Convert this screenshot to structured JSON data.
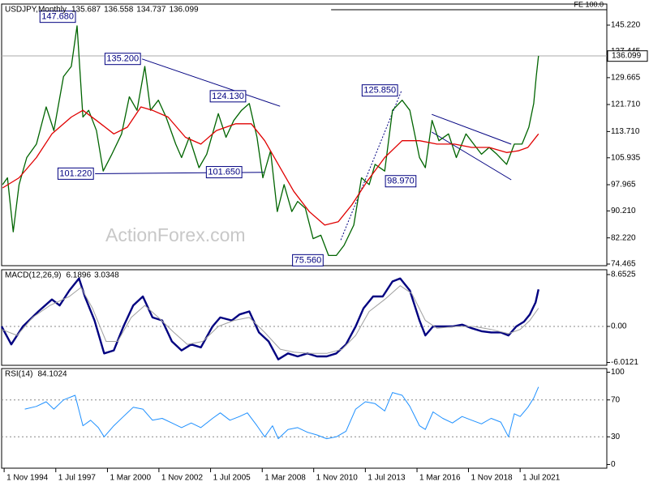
{
  "chart_data": [
    {
      "type": "line",
      "title": "USDJPY,Monthly",
      "ohlc": [
        135.687,
        136.558,
        134.737,
        136.099
      ],
      "xlim": [
        1994.7,
        2025.98
      ],
      "xticks": [
        {
          "value": 1994.83,
          "label": "1 Nov 1994"
        },
        {
          "value": 1997.5,
          "label": "1 Jul 1997"
        },
        {
          "value": 2000.17,
          "label": "1 Mar 2000"
        },
        {
          "value": 2002.83,
          "label": "1 Nov 2002"
        },
        {
          "value": 2005.5,
          "label": "1 Jul 2005"
        },
        {
          "value": 2008.17,
          "label": "1 Mar 2008"
        },
        {
          "value": 2010.83,
          "label": "1 Nov 2010"
        },
        {
          "value": 2013.5,
          "label": "1 Jul 2013"
        },
        {
          "value": 2016.17,
          "label": "1 Mar 2016"
        },
        {
          "value": 2018.83,
          "label": "1 Nov 2018"
        },
        {
          "value": 2021.5,
          "label": "1 Jul 2021"
        }
      ],
      "ylim": [
        73.985,
        151.46
      ],
      "yticks": [
        {
          "value": 145.22,
          "label": "145.220"
        },
        {
          "value": 137.445,
          "label": "137.445"
        },
        {
          "value": 129.665,
          "label": "129.665"
        },
        {
          "value": 121.71,
          "label": "121.710"
        },
        {
          "value": 113.71,
          "label": "113.710"
        },
        {
          "value": 105.935,
          "label": "105.935"
        },
        {
          "value": 97.965,
          "label": "97.965"
        },
        {
          "value": 90.21,
          "label": "90.210"
        },
        {
          "value": 82.22,
          "label": "82.220"
        },
        {
          "value": 74.465,
          "label": "74.465"
        }
      ],
      "series": [
        {
          "color": "#006400",
          "x": [
            1994.75,
            1995.0,
            1995.3,
            1995.6,
            1996.0,
            1996.5,
            1997.0,
            1997.4,
            1997.9,
            1998.3,
            1998.6,
            1998.9,
            1999.2,
            1999.6,
            1999.95,
            2000.4,
            2000.9,
            2001.3,
            2001.7,
            2002.1,
            2002.4,
            2002.8,
            2003.2,
            2003.7,
            2004.0,
            2004.4,
            2004.9,
            2005.3,
            2005.9,
            2006.3,
            2006.7,
            2007.1,
            2007.5,
            2007.9,
            2008.2,
            2008.6,
            2008.95,
            2009.3,
            2009.7,
            2010.0,
            2010.4,
            2010.8,
            2011.2,
            2011.6,
            2012.0,
            2012.4,
            2012.9,
            2013.3,
            2013.7,
            2014.0,
            2014.5,
            2014.9,
            2015.4,
            2015.8,
            2016.3,
            2016.6,
            2016.95,
            2017.3,
            2017.8,
            2018.2,
            2018.7,
            2019.1,
            2019.5,
            2019.9,
            2020.3,
            2020.8,
            2021.2,
            2021.6,
            2021.95,
            2022.2,
            2022.33,
            2022.45
          ],
          "values": [
            98,
            100,
            84,
            98,
            106,
            110,
            121,
            114,
            130,
            133,
            145,
            118,
            120,
            114,
            102,
            107,
            113,
            124,
            120,
            133,
            120,
            123,
            118,
            110,
            106,
            112,
            103,
            107,
            119,
            112,
            117,
            120,
            122,
            112,
            100,
            108,
            90,
            98,
            90,
            93,
            91,
            82,
            83,
            77,
            77,
            80,
            86,
            100,
            98,
            104,
            102,
            120,
            123,
            120,
            106,
            103,
            117,
            111,
            113,
            106,
            113,
            110,
            107,
            109,
            107,
            104,
            110,
            110,
            115,
            122,
            130,
            136.099
          ]
        },
        {
          "color": "#e00000",
          "x": [
            1994.75,
            1995.6,
            1996.5,
            1997.3,
            1998.3,
            1998.9,
            1999.6,
            2000.5,
            2001.2,
            2001.9,
            2002.5,
            2003.3,
            2004.2,
            2005.0,
            2005.8,
            2006.8,
            2007.6,
            2008.3,
            2009.0,
            2009.8,
            2010.6,
            2011.4,
            2012.1,
            2012.8,
            2013.6,
            2014.5,
            2015.4,
            2016.3,
            2017.2,
            2018.1,
            2019.0,
            2019.9,
            2020.8,
            2021.4,
            2021.9,
            2022.45
          ],
          "values": [
            97,
            100,
            106,
            113,
            118,
            120,
            117,
            113,
            115,
            121,
            120,
            118,
            112,
            110,
            114,
            116,
            116,
            111,
            104,
            96,
            90,
            86,
            87,
            92,
            99,
            106,
            111,
            111,
            110,
            110,
            109,
            109,
            107.5,
            108,
            109,
            113
          ]
        }
      ],
      "current_price": 136.099,
      "annotations": [
        {
          "x": 1998.6,
          "value": 147.68,
          "label": "147.680"
        },
        {
          "x": 2001.96,
          "value": 135.2,
          "label": "135.200"
        },
        {
          "x": 2007.4,
          "value": 124.13,
          "label": "124.130"
        },
        {
          "x": 1999.53,
          "value": 101.22,
          "label": "101.220"
        },
        {
          "x": 2007.2,
          "value": 101.65,
          "label": "101.650"
        },
        {
          "x": 2015.25,
          "value": 125.85,
          "label": "125.850"
        },
        {
          "x": 2016.2,
          "value": 98.97,
          "label": "98.970"
        },
        {
          "x": 2011.4,
          "value": 75.56,
          "label": "75.560"
        }
      ],
      "trendlines": [
        {
          "style": "solid",
          "x": [
            2001.96,
            2009.09
          ],
          "y": [
            135.2,
            121.2
          ]
        },
        {
          "style": "solid",
          "x": [
            1999.53,
            2008.25
          ],
          "y": [
            101.22,
            101.65
          ]
        },
        {
          "style": "dotted",
          "x": [
            2012.23,
            2015.37
          ],
          "y": [
            81.6,
            125.85
          ]
        },
        {
          "style": "solid",
          "x": [
            2016.93,
            2021.04
          ],
          "y": [
            118.8,
            109.96
          ]
        },
        {
          "style": "solid",
          "x": [
            2016.93,
            2021.04
          ],
          "y": [
            113.56,
            99.4
          ]
        }
      ],
      "fe": {
        "label": "FE 100.0",
        "level": 149.78,
        "x": 2011.73
      },
      "watermark": "ActionForex.com"
    },
    {
      "type": "line",
      "title": "MACD(12,26,9)",
      "readings": [
        6.1896,
        3.0348
      ],
      "ylim": [
        -6.49,
        9.46
      ],
      "yticks": [
        8.6525,
        {
          "value": 0,
          "label": "0.00"
        },
        -6.0121
      ],
      "levels": [
        0
      ],
      "series": [
        {
          "color": "#000080",
          "width": 2.4,
          "x": [
            1994.7,
            1995.2,
            1995.8,
            1996.6,
            1997.3,
            1997.7,
            1998.2,
            1998.7,
            1999.0,
            1999.5,
            2000.0,
            2000.5,
            2001.0,
            2001.5,
            2002.0,
            2002.5,
            2003.0,
            2003.5,
            2004.0,
            2004.5,
            2005.0,
            2005.6,
            2006.0,
            2006.6,
            2007.0,
            2007.5,
            2008.0,
            2008.5,
            2009.0,
            2009.5,
            2010.0,
            2010.5,
            2011.0,
            2011.5,
            2012.0,
            2012.5,
            2013.0,
            2013.4,
            2013.9,
            2014.4,
            2014.9,
            2015.3,
            2015.8,
            2016.3,
            2016.6,
            2017.0,
            2017.5,
            2018.0,
            2018.5,
            2019.0,
            2019.5,
            2020.0,
            2020.5,
            2020.9,
            2021.3,
            2021.7,
            2022.0,
            2022.3,
            2022.45
          ],
          "values": [
            0,
            -3,
            0,
            2.5,
            4.5,
            3.5,
            6,
            8,
            5,
            1,
            -4.5,
            -4,
            0,
            3.5,
            5,
            1.5,
            1,
            -2.5,
            -4,
            -3,
            -3.5,
            0,
            1.5,
            1,
            2,
            2.5,
            -1,
            -2.5,
            -5.5,
            -4.5,
            -5,
            -4.5,
            -5,
            -5,
            -4.5,
            -3,
            0,
            3,
            5,
            5,
            7.5,
            8,
            6,
            1,
            -1.5,
            0,
            0,
            0,
            0.3,
            -0.3,
            -0.8,
            -1,
            -1,
            -1.5,
            0,
            0.8,
            2,
            4,
            6.1896
          ]
        },
        {
          "color": "#a0a0a0",
          "width": 1,
          "x": [
            1994.7,
            1995.5,
            1996.3,
            1997.2,
            1998.2,
            1998.8,
            1999.4,
            2000.1,
            2000.7,
            2001.4,
            2002.1,
            2002.8,
            2003.6,
            2004.3,
            2005.1,
            2005.9,
            2006.7,
            2007.5,
            2008.3,
            2009.1,
            2009.8,
            2010.6,
            2011.5,
            2012.3,
            2013.0,
            2013.7,
            2014.5,
            2015.3,
            2015.9,
            2016.6,
            2017.2,
            2018.2,
            2019.1,
            2020.0,
            2020.9,
            2021.5,
            2022.0,
            2022.45
          ],
          "values": [
            -0.5,
            -1.5,
            1.5,
            3.5,
            5,
            6.5,
            3,
            -2.5,
            -2.5,
            1.5,
            3.5,
            1.5,
            -1,
            -3,
            -2.5,
            0,
            1,
            1.5,
            -1,
            -3.8,
            -4.3,
            -4.5,
            -4.5,
            -3.8,
            -1.5,
            2.5,
            4.5,
            6.8,
            5.5,
            1,
            -0.3,
            0,
            0,
            -0.5,
            -1.2,
            -0.5,
            1,
            3.0348
          ]
        }
      ]
    },
    {
      "type": "line",
      "title": "RSI(14)",
      "readings": [
        84.1024
      ],
      "ylim": [
        -4,
        104
      ],
      "yticks": [
        100,
        70,
        30,
        0
      ],
      "levels": [
        70,
        30
      ],
      "series": [
        {
          "color": "#1e90ff",
          "width": 1,
          "x": [
            1995.9,
            1996.5,
            1997.0,
            1997.4,
            1997.9,
            1998.5,
            1998.9,
            1999.3,
            1999.7,
            2000.0,
            2000.5,
            2001.0,
            2001.5,
            2002.0,
            2002.5,
            2003.0,
            2003.5,
            2004.0,
            2004.5,
            2005.0,
            2005.6,
            2006.0,
            2006.5,
            2007.0,
            2007.4,
            2007.9,
            2008.3,
            2008.7,
            2009.0,
            2009.5,
            2010.0,
            2010.5,
            2011.0,
            2011.5,
            2012.0,
            2012.5,
            2013.0,
            2013.5,
            2014.0,
            2014.5,
            2014.9,
            2015.4,
            2015.8,
            2016.3,
            2016.6,
            2017.0,
            2017.5,
            2018.0,
            2018.5,
            2019.0,
            2019.5,
            2020.0,
            2020.5,
            2020.9,
            2021.2,
            2021.5,
            2021.9,
            2022.2,
            2022.45
          ],
          "values": [
            60,
            63,
            68,
            60,
            70,
            75,
            42,
            48,
            40,
            30,
            42,
            52,
            62,
            60,
            48,
            50,
            45,
            40,
            45,
            40,
            50,
            56,
            48,
            52,
            56,
            42,
            30,
            42,
            28,
            38,
            40,
            35,
            32,
            28,
            30,
            36,
            60,
            68,
            66,
            58,
            78,
            75,
            63,
            42,
            38,
            57,
            50,
            45,
            52,
            48,
            44,
            50,
            46,
            30,
            55,
            52,
            62,
            72,
            84.1024
          ]
        }
      ]
    }
  ]
}
